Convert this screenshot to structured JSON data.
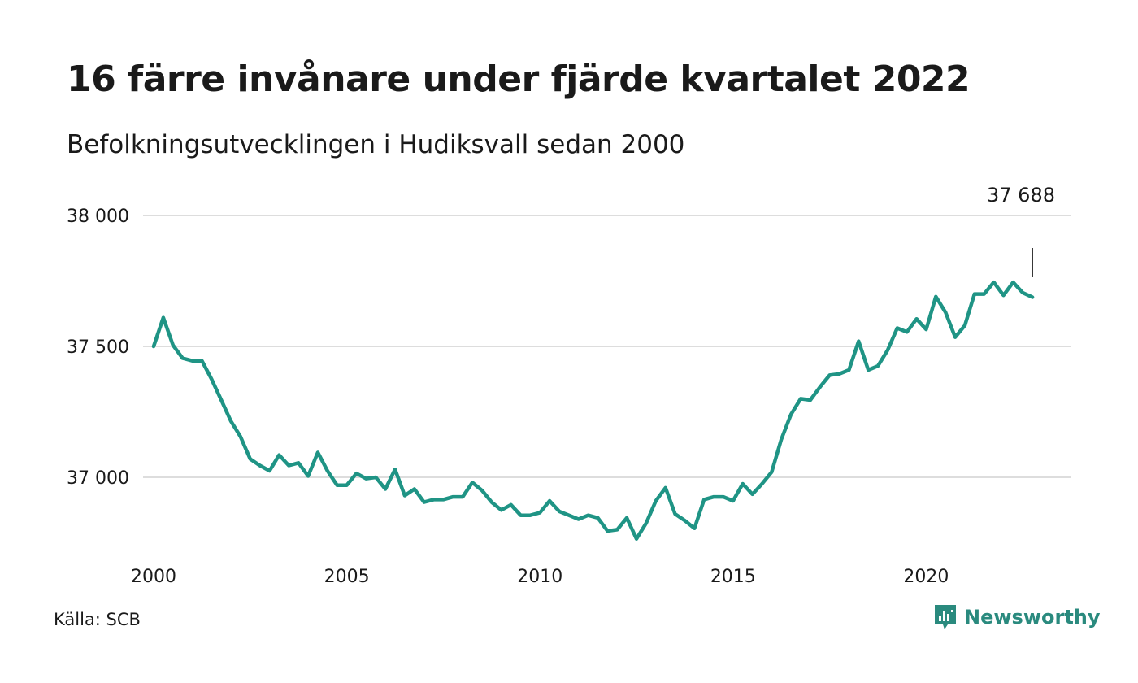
{
  "header": {
    "title": "16 färre invånare under fjärde kvartalet 2022",
    "subtitle": "Befolkningsutvecklingen i Hudiksvall sedan 2000"
  },
  "footer": {
    "source": "Källa: SCB",
    "brand": "Newsworthy",
    "brand_icon": "newsworthy-logo-icon"
  },
  "colors": {
    "line": "#1f9485",
    "grid": "#dddddd",
    "brand": "#2a8a7e"
  },
  "chart_data": {
    "type": "line",
    "title": "16 färre invånare under fjärde kvartalet 2022",
    "subtitle": "Befolkningsutvecklingen i Hudiksvall sedan 2000",
    "xlabel": "",
    "ylabel": "",
    "x_ticks": [
      "2000",
      "2005",
      "2010",
      "2015",
      "2020"
    ],
    "x_tick_values": [
      2000,
      2005,
      2010,
      2015,
      2020
    ],
    "y_ticks": [
      "37 000",
      "37 500",
      "38 000"
    ],
    "y_tick_values": [
      37000,
      37500,
      38000
    ],
    "xlim": [
      2000,
      2023
    ],
    "ylim": [
      36750,
      38000
    ],
    "grid": true,
    "annotation": {
      "label": "37 688",
      "x": 2022.75,
      "value": 37688
    },
    "series": [
      {
        "x": [
          2000.0,
          2000.25,
          2000.5,
          2000.75,
          2001.0,
          2001.25,
          2001.5,
          2001.75,
          2002.0,
          2002.25,
          2002.5,
          2002.75,
          2003.0,
          2003.25,
          2003.5,
          2003.75,
          2004.0,
          2004.25,
          2004.5,
          2004.75,
          2005.0,
          2005.25,
          2005.5,
          2005.75,
          2006.0,
          2006.25,
          2006.5,
          2006.75,
          2007.0,
          2007.25,
          2007.5,
          2007.75,
          2008.0,
          2008.25,
          2008.5,
          2008.75,
          2009.0,
          2009.25,
          2009.5,
          2009.75,
          2010.0,
          2010.25,
          2010.5,
          2010.75,
          2011.0,
          2011.25,
          2011.5,
          2011.75,
          2012.0,
          2012.25,
          2012.5,
          2012.75,
          2013.0,
          2013.25,
          2013.5,
          2013.75,
          2014.0,
          2014.25,
          2014.5,
          2014.75,
          2015.0,
          2015.25,
          2015.5,
          2015.75,
          2016.0,
          2016.25,
          2016.5,
          2016.75,
          2017.0,
          2017.25,
          2017.5,
          2017.75,
          2018.0,
          2018.25,
          2018.5,
          2018.75,
          2019.0,
          2019.25,
          2019.5,
          2019.75,
          2020.0,
          2020.25,
          2020.5,
          2020.75,
          2021.0,
          2021.25,
          2021.5,
          2021.75,
          2022.0,
          2022.25,
          2022.5,
          2022.75
        ],
        "values": [
          37500,
          37610,
          37505,
          37455,
          37445,
          37445,
          37375,
          37295,
          37215,
          37155,
          37070,
          37045,
          37025,
          37085,
          37045,
          37055,
          37005,
          37095,
          37025,
          36970,
          36970,
          37015,
          36995,
          37000,
          36955,
          37030,
          36930,
          36955,
          36905,
          36915,
          36915,
          36925,
          36925,
          36980,
          36950,
          36905,
          36875,
          36895,
          36855,
          36855,
          36865,
          36910,
          36870,
          36855,
          36840,
          36855,
          36845,
          36795,
          36800,
          36845,
          36765,
          36825,
          36910,
          36960,
          36860,
          36835,
          36805,
          36915,
          36925,
          36925,
          36910,
          36975,
          36935,
          36975,
          37020,
          37145,
          37240,
          37300,
          37295,
          37345,
          37390,
          37395,
          37410,
          37520,
          37410,
          37425,
          37485,
          37570,
          37555,
          37605,
          37565,
          37690,
          37630,
          37535,
          37580,
          37700,
          37700,
          37745,
          37695,
          37745,
          37705,
          37688
        ]
      }
    ]
  }
}
